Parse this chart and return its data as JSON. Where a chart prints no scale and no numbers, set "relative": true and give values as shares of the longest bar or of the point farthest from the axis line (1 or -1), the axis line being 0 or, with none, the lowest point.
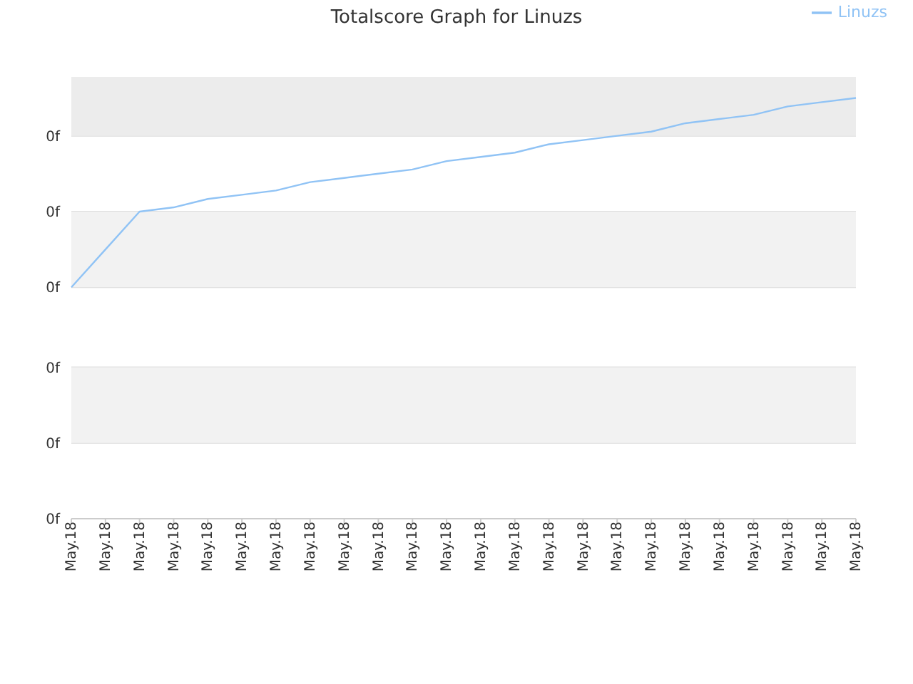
{
  "chart_data": {
    "type": "line",
    "title": "Totalscore Graph for Linuzs",
    "relative": true,
    "categories": [
      "May.18",
      "May.18",
      "May.18",
      "May.18",
      "May.18",
      "May.18",
      "May.18",
      "May.18",
      "May.18",
      "May.18",
      "May.18",
      "May.18",
      "May.18",
      "May.18",
      "May.18",
      "May.18",
      "May.18",
      "May.18",
      "May.18",
      "May.18",
      "May.18",
      "May.18",
      "May.18",
      "May.18"
    ],
    "series": [
      {
        "name": "Linuzs",
        "color": "#90c3f5",
        "values": [
          0.55,
          0.64,
          0.73,
          0.74,
          0.76,
          0.77,
          0.78,
          0.8,
          0.81,
          0.82,
          0.83,
          0.85,
          0.86,
          0.87,
          0.89,
          0.9,
          0.91,
          0.92,
          0.94,
          0.95,
          0.96,
          0.98,
          0.99,
          1
        ]
      }
    ],
    "bands": [
      {
        "axis": "y",
        "from": 0.18,
        "to": 0.36,
        "color": "#f2f2f2"
      },
      {
        "axis": "y",
        "from": 0.55,
        "to": 0.73,
        "color": "#f2f2f2"
      },
      {
        "axis": "y",
        "from": 0.91,
        "to": 1.05,
        "color": "#ececec"
      }
    ],
    "annotations": [
      "0f",
      "0f",
      "0f",
      "0f",
      "0f",
      "0f"
    ],
    "grid": "y",
    "legend": "top right",
    "marker": "none",
    "line_style": "solid"
  }
}
